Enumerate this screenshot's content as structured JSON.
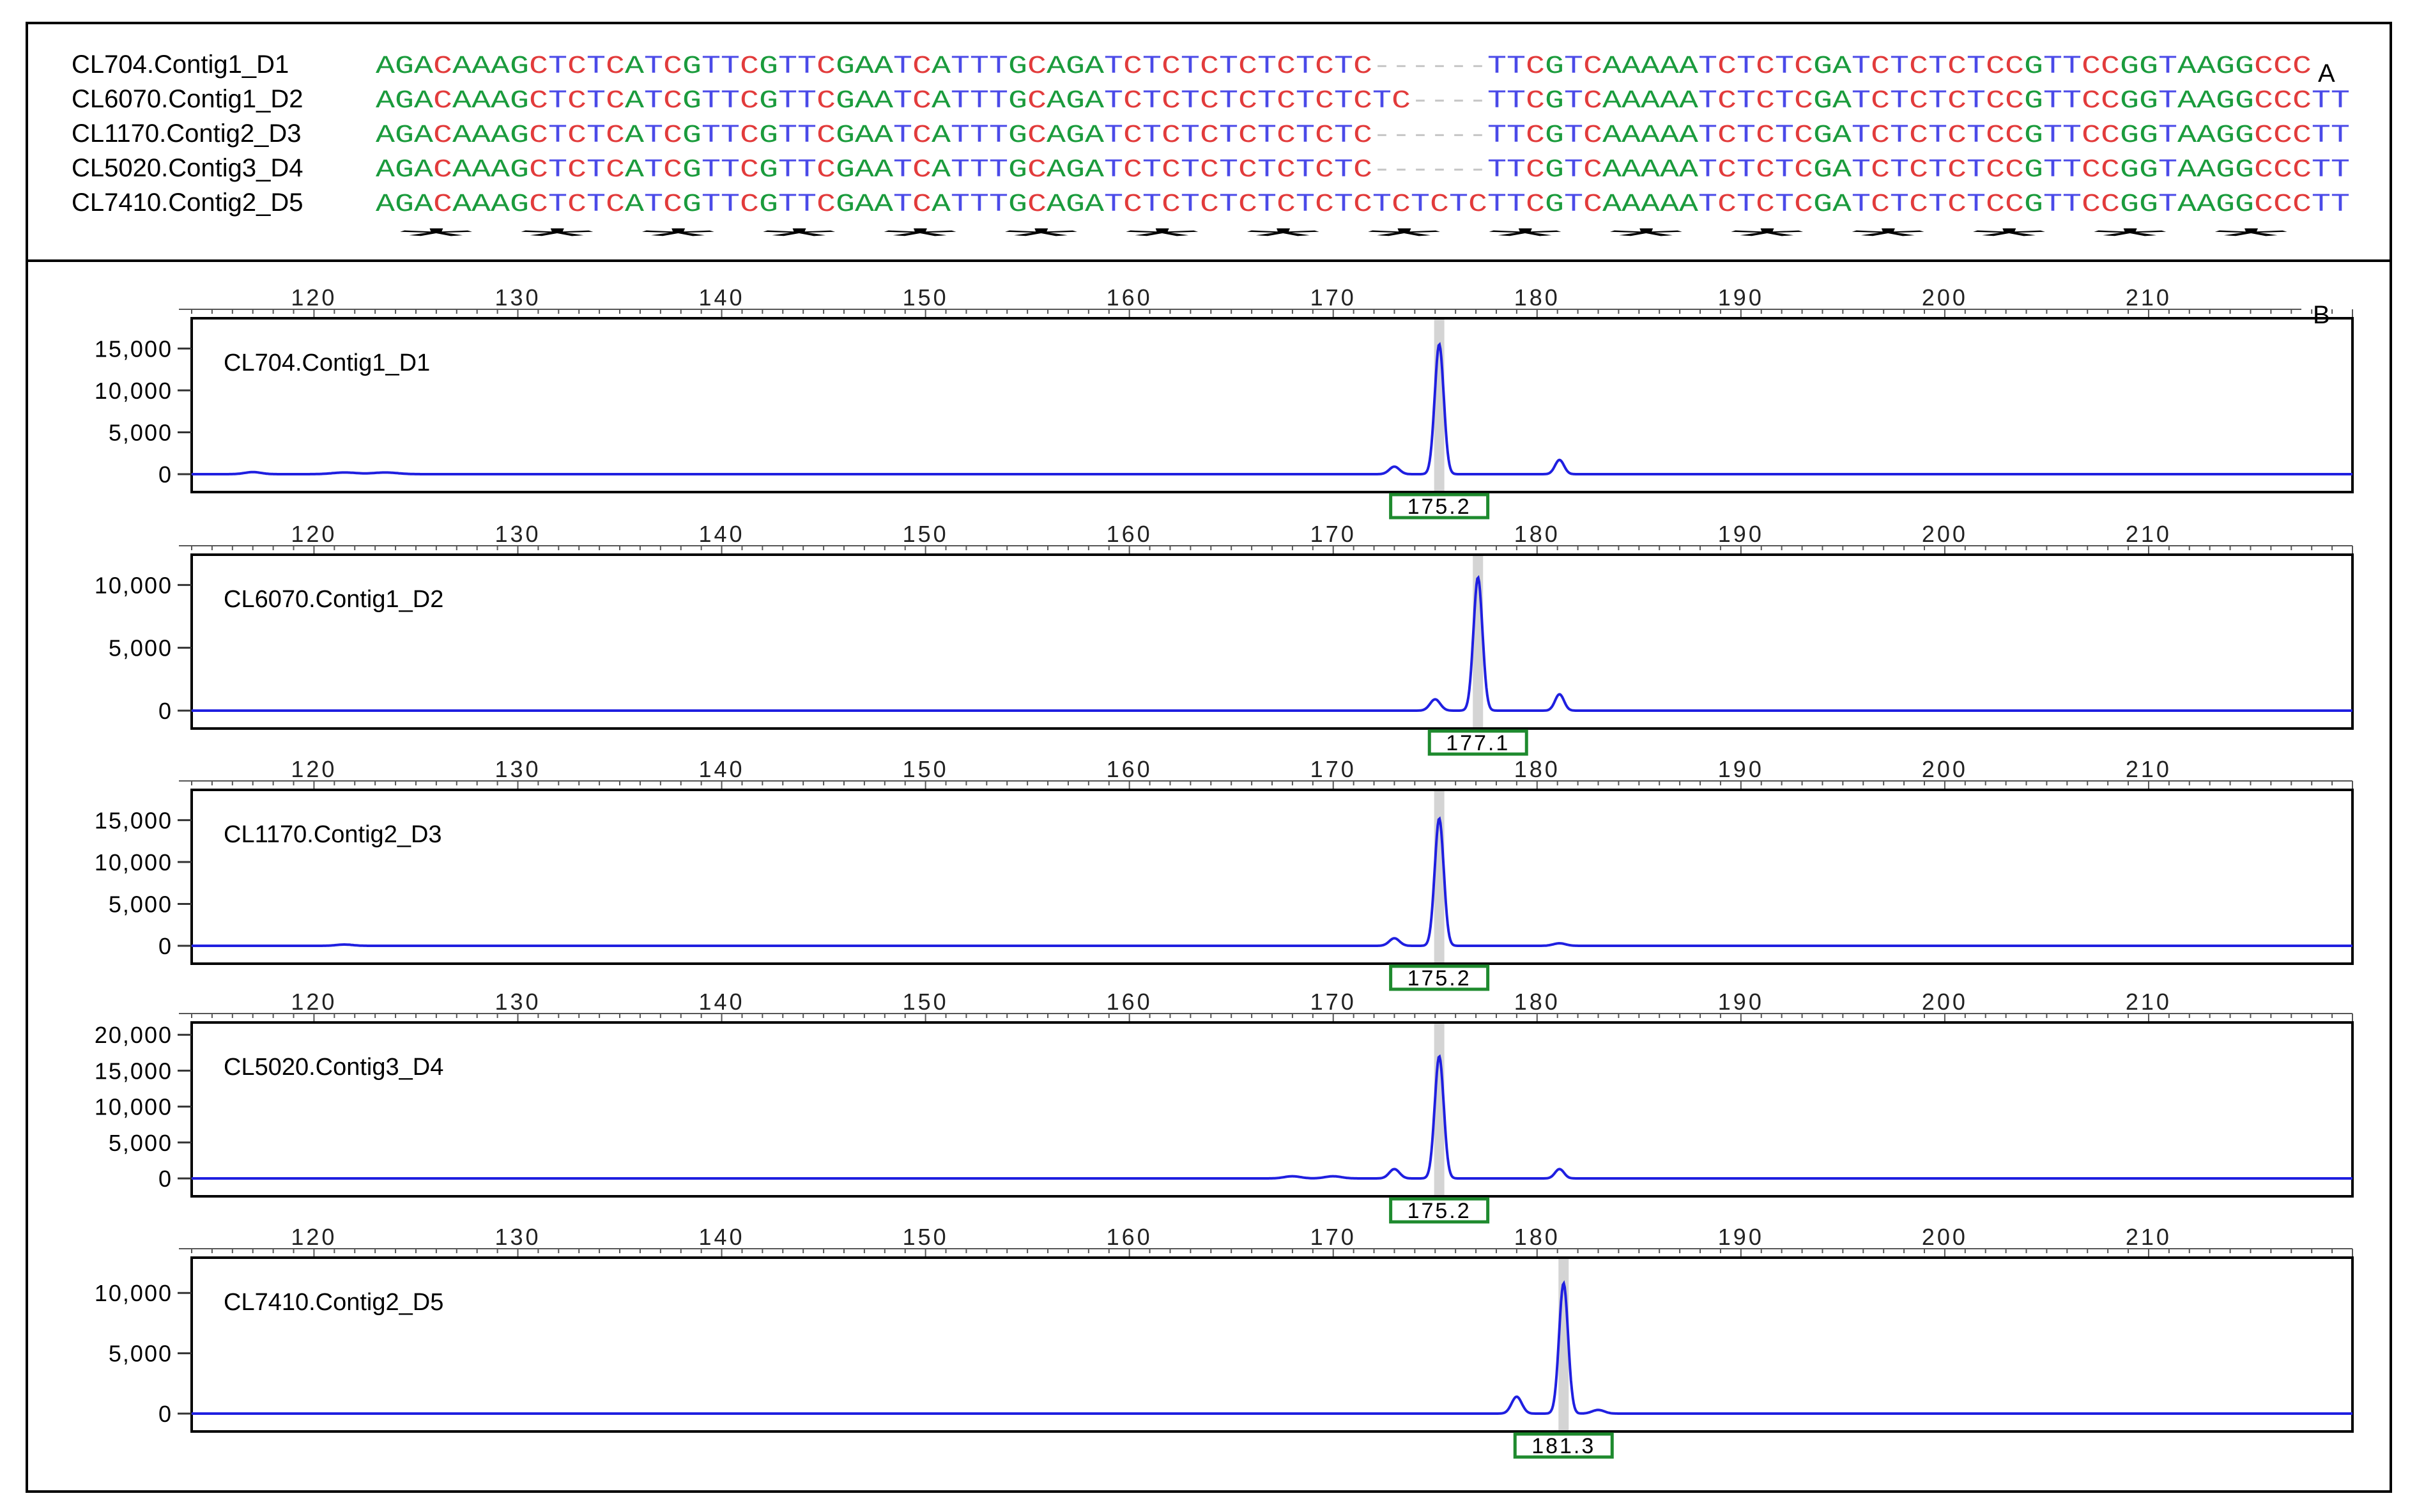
{
  "panel_a": {
    "letter": "A",
    "colors": {
      "A": "#1a9b3c",
      "G": "#1a9b3c",
      "C": "#e23b3b",
      "T": "#4a4ae8",
      "-": "#c8c8c8"
    },
    "rows": [
      {
        "label": "CL704.Contig1_D1",
        "seq": "AGACAAAGCTCTCATCGTTCGTTCGAATCATTTGCAGATCTCTCTCTCTCTC------TTCGTCAAAAATCTCTCGATCTCTCTCCGTTCCGGTAAGGCCC"
      },
      {
        "label": "CL6070.Contig1_D2",
        "seq": "AGACAAAGCTCTCATCGTTCGTTCGAATCATTTGCAGATCTCTCTCTCTCTCTC----TTCGTCAAAAATCTCTCGATCTCTCTCCGTTCCGGTAAGGCCCTT"
      },
      {
        "label": "CL1170.Contig2_D3",
        "seq": "AGACAAAGCTCTCATCGTTCGTTCGAATCATTTGCAGATCTCTCTCTCTCTC------TTCGTCAAAAATCTCTCGATCTCTCTCCGTTCCGGTAAGGCCCTT"
      },
      {
        "label": "CL5020.Contig3_D4",
        "seq": "AGACAAAGCTCTCATCGTTCGTTCGAATCATTTGCAGATCTCTCTCTCTCTC------TTCGTCAAAAATCTCTCGATCTCTCTCCGTTCCGGTAAGGCCCTT"
      },
      {
        "label": "CL7410.Contig2_D5",
        "seq": "AGACAAAGCTCTCATCGTTCGTTCGAATCATTTGCAGATCTCTCTCTCTCTCTCTCTCTTCGTCAAAAATCTCTCGATCTCTCTCCGTTCCGGTAAGGCCCTT"
      }
    ],
    "consensus": "                                     ****************                                                "
  },
  "chart_data": {
    "type": "line",
    "panel_letter": "B",
    "x_ticks": [
      120,
      130,
      140,
      150,
      160,
      170,
      180,
      190,
      200,
      210
    ],
    "xlim": [
      114,
      220
    ],
    "line_color": "#1f1fe0",
    "marker_color": "#1e8a2e",
    "panels": [
      {
        "name": "CL704.Contig1_D1",
        "ylim": [
          0,
          18000
        ],
        "y_ticks": [
          0,
          5000,
          10000,
          15000
        ],
        "y_tick_labels": [
          "0",
          "5,000",
          "10,000",
          "15,000"
        ],
        "peak_label": "175.2",
        "peak_x": 175.2,
        "peaks": [
          [
            117,
            250,
            0.4
          ],
          [
            121.5,
            200,
            0.6
          ],
          [
            123.5,
            200,
            0.6
          ],
          [
            173,
            900,
            0.25
          ],
          [
            175.2,
            15500,
            0.22
          ],
          [
            181.1,
            1700,
            0.22
          ]
        ]
      },
      {
        "name": "CL6070.Contig1_D2",
        "ylim": [
          0,
          12000
        ],
        "y_ticks": [
          0,
          5000,
          10000
        ],
        "y_tick_labels": [
          "0",
          "5,000",
          "10,000"
        ],
        "peak_label": "177.1",
        "peak_x": 177.1,
        "peaks": [
          [
            175,
            900,
            0.25
          ],
          [
            177.1,
            10600,
            0.22
          ],
          [
            181.1,
            1300,
            0.22
          ]
        ]
      },
      {
        "name": "CL1170.Contig2_D3",
        "ylim": [
          0,
          18000
        ],
        "y_ticks": [
          0,
          5000,
          10000,
          15000
        ],
        "y_tick_labels": [
          "0",
          "5,000",
          "10,000",
          "15,000"
        ],
        "peak_label": "175.2",
        "peak_x": 175.2,
        "peaks": [
          [
            121.5,
            150,
            0.4
          ],
          [
            173,
            900,
            0.25
          ],
          [
            175.2,
            15200,
            0.22
          ],
          [
            181.1,
            300,
            0.3
          ]
        ]
      },
      {
        "name": "CL5020.Contig3_D4",
        "ylim": [
          0,
          21000
        ],
        "y_ticks": [
          0,
          5000,
          10000,
          15000,
          20000
        ],
        "y_tick_labels": [
          "0",
          "5,000",
          "10,000",
          "15,000",
          "20,000"
        ],
        "peak_label": "175.2",
        "peak_x": 175.2,
        "peaks": [
          [
            168,
            300,
            0.4
          ],
          [
            170,
            300,
            0.4
          ],
          [
            173,
            1300,
            0.25
          ],
          [
            175.2,
            17000,
            0.22
          ],
          [
            181.1,
            1300,
            0.22
          ]
        ]
      },
      {
        "name": "CL7410.Contig2_D5",
        "ylim": [
          0,
          12500
        ],
        "y_ticks": [
          0,
          5000,
          10000
        ],
        "y_tick_labels": [
          "0",
          "5,000",
          "10,000"
        ],
        "peak_label": "181.3",
        "peak_x": 181.3,
        "peaks": [
          [
            179,
            1400,
            0.25
          ],
          [
            181.3,
            10800,
            0.22
          ],
          [
            183,
            300,
            0.3
          ]
        ]
      }
    ]
  }
}
